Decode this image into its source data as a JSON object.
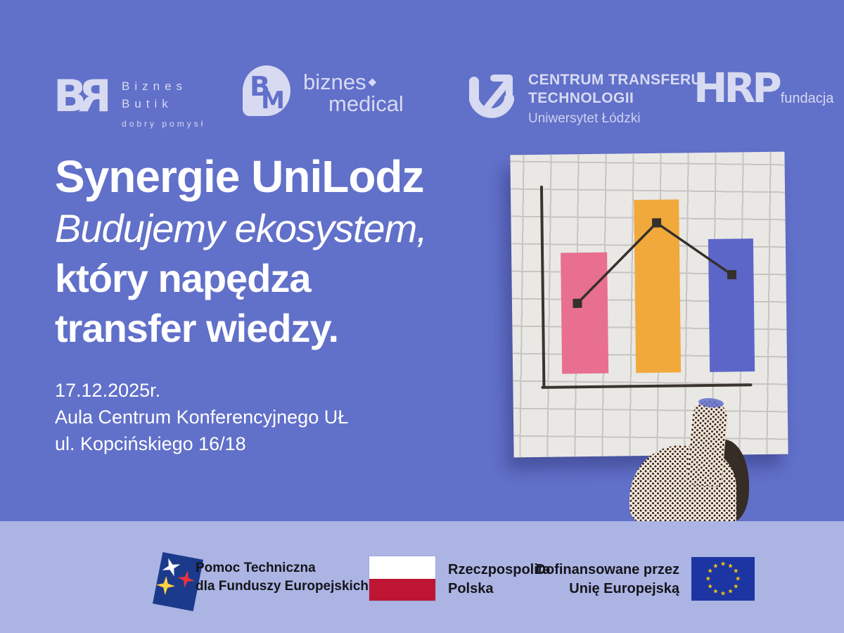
{
  "colors": {
    "bg": "#6170c9",
    "footer_bg": "#abb4e3",
    "tint": "#d7daf1",
    "white": "#ffffff",
    "card": "#e9e8e5",
    "grid": "#c6c5c2",
    "axis": "#3a342e",
    "pink": "#e86f90",
    "orange": "#f1a93c",
    "blue": "#5c66c9",
    "line": "#35302b",
    "skin": "#f6e7d9",
    "dot": "#2b2420",
    "shadow": "#362d26",
    "fe_blue": "#1b3a8c",
    "red_star": "#e8343c",
    "yellow_star": "#ffd243",
    "pl_red": "#bf1535",
    "eu_blue": "#1d35a3",
    "eu_star": "#ffcc00",
    "ink": "#15151a"
  },
  "logos": {
    "biznes_butik": {
      "mono_b": "B",
      "mono_r": "R",
      "line1": "Biznes",
      "line2": "Butik",
      "tagline": "dobry pomysł"
    },
    "biznes_medical": {
      "mono_b": "B",
      "mono_m": "M",
      "line1": "biznes",
      "diamond": "◆",
      "line2": "medical"
    },
    "ctt": {
      "line1": "CENTRUM TRANSFERU",
      "line2": "TECHNOLOGII",
      "line3": "Uniwersytet Łódzki"
    },
    "hrp": {
      "name": "HRP",
      "suffix": "fundacja"
    }
  },
  "headline": {
    "title": "Synergie UniLodz",
    "line2": "Budujemy ekosystem,",
    "line3": "który napędza",
    "line4": "transfer wiedzy."
  },
  "details": {
    "date": "17.12.2025r.",
    "venue": "Aula Centrum Konferencyjnego UŁ",
    "address": "ul. Kopcińskiego 16/18"
  },
  "chart_illustration": {
    "type": "bar",
    "note": "decorative hand-held chart, no axis labels",
    "bars": [
      {
        "color": "pink",
        "relative_height": 0.6
      },
      {
        "color": "orange",
        "relative_height": 0.85
      },
      {
        "color": "blue",
        "relative_height": 0.66
      }
    ],
    "line_markers_relative": [
      0.4,
      0.79,
      0.53
    ]
  },
  "footer": {
    "fe": {
      "line1": "Pomoc Techniczna",
      "line2": "dla Funduszy Europejskich"
    },
    "pl": {
      "line1": "Rzeczpospolita",
      "line2": "Polska"
    },
    "eu": {
      "line1": "Dofinansowane przez",
      "line2": "Unię Europejską",
      "star_glyph": "★",
      "star_count": 12
    }
  }
}
